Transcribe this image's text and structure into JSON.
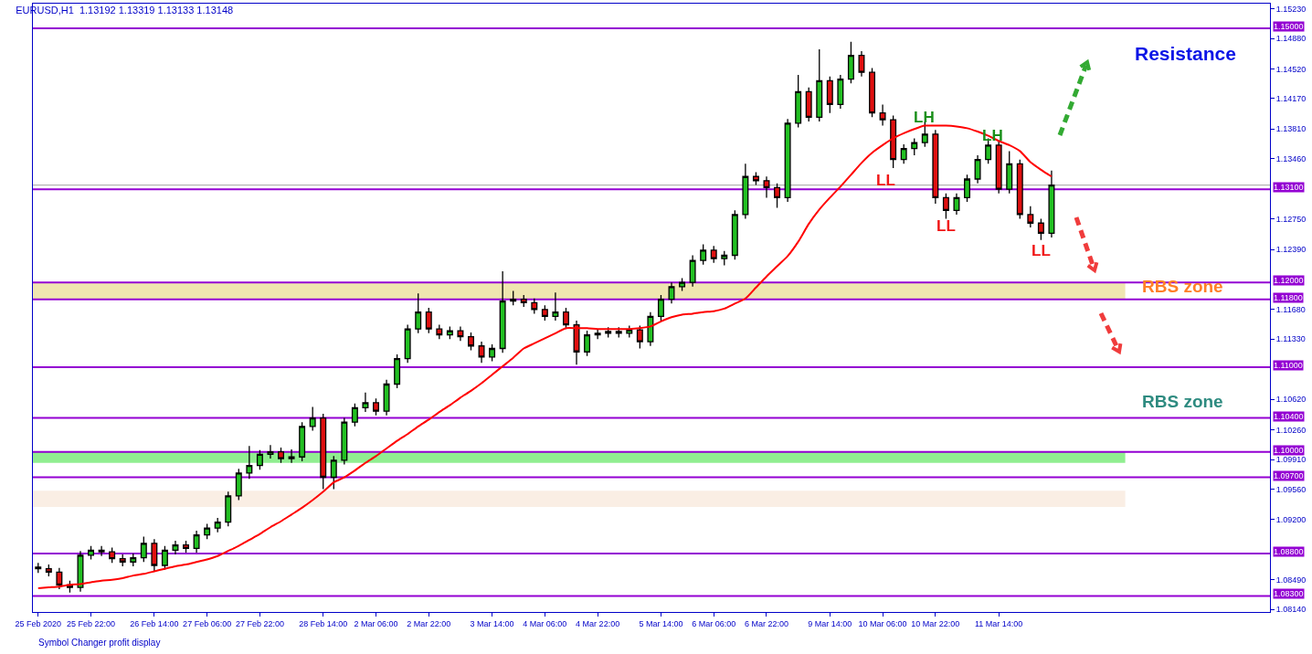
{
  "chart_data": {
    "type": "candlestick",
    "title": "EURUSD,H1  1.13192 1.13319 1.13133 1.13148",
    "categories": [
      "25 Feb 2020",
      null,
      null,
      null,
      null,
      "25 Feb 22:00",
      null,
      null,
      null,
      null,
      null,
      "26 Feb 14:00",
      null,
      null,
      null,
      null,
      "27 Feb 06:00",
      null,
      null,
      null,
      null,
      "27 Feb 22:00",
      null,
      null,
      null,
      null,
      null,
      "28 Feb 14:00",
      null,
      null,
      null,
      null,
      "2 Mar 06:00",
      null,
      null,
      null,
      null,
      "2 Mar 22:00",
      null,
      null,
      null,
      null,
      null,
      "3 Mar 14:00",
      null,
      null,
      null,
      null,
      "4 Mar 06:00",
      null,
      null,
      null,
      null,
      "4 Mar 22:00",
      null,
      null,
      null,
      null,
      null,
      "5 Mar 14:00",
      null,
      null,
      null,
      null,
      "6 Mar 06:00",
      null,
      null,
      null,
      null,
      "6 Mar 22:00",
      null,
      null,
      null,
      null,
      null,
      "9 Mar 14:00",
      null,
      null,
      null,
      null,
      "10 Mar 06:00",
      null,
      null,
      null,
      null,
      "10 Mar 22:00",
      null,
      null,
      null,
      null,
      null,
      "11 Mar 14:00",
      null,
      null,
      null,
      null,
      null
    ],
    "ohlc": [
      [
        1.0864,
        1.0869,
        1.0857,
        1.0862
      ],
      [
        1.0862,
        1.0867,
        1.0853,
        1.0858
      ],
      [
        1.0858,
        1.0863,
        1.0838,
        1.0843
      ],
      [
        1.0843,
        1.0848,
        1.0834,
        1.084
      ],
      [
        1.084,
        1.0883,
        1.0835,
        1.0878
      ],
      [
        1.0878,
        1.0889,
        1.0873,
        1.0884
      ],
      [
        1.0884,
        1.0889,
        1.0877,
        1.0882
      ],
      [
        1.0882,
        1.0887,
        1.0869,
        1.0874
      ],
      [
        1.0874,
        1.0879,
        1.0865,
        1.087
      ],
      [
        1.087,
        1.088,
        1.0865,
        1.0875
      ],
      [
        1.0875,
        1.09,
        1.087,
        1.0892
      ],
      [
        1.0892,
        1.0897,
        1.0859,
        1.0866
      ],
      [
        1.0866,
        1.0889,
        1.0861,
        1.0884
      ],
      [
        1.0884,
        1.0895,
        1.0879,
        1.089
      ],
      [
        1.089,
        1.0895,
        1.0881,
        1.0886
      ],
      [
        1.0886,
        1.0907,
        1.0881,
        1.0902
      ],
      [
        1.0902,
        1.0915,
        1.0897,
        1.091
      ],
      [
        1.091,
        1.0922,
        1.0905,
        1.0917
      ],
      [
        1.0917,
        1.0953,
        1.0912,
        1.0948
      ],
      [
        1.0948,
        1.098,
        1.0943,
        1.0975
      ],
      [
        1.0975,
        1.1007,
        1.0968,
        1.0984
      ],
      [
        1.0984,
        1.1002,
        1.0979,
        1.0997
      ],
      [
        1.0997,
        1.1008,
        1.0992,
        1.1
      ],
      [
        1.1,
        1.1005,
        1.0987,
        1.0992
      ],
      [
        1.0992,
        1.1003,
        1.0987,
        1.0994
      ],
      [
        1.0994,
        1.1035,
        1.0989,
        1.103
      ],
      [
        1.103,
        1.1053,
        1.1025,
        1.104
      ],
      [
        1.104,
        1.1045,
        1.0956,
        1.097
      ],
      [
        1.097,
        1.0995,
        1.0956,
        1.099
      ],
      [
        1.099,
        1.104,
        1.0985,
        1.1035
      ],
      [
        1.1035,
        1.1057,
        1.103,
        1.1052
      ],
      [
        1.1052,
        1.107,
        1.1047,
        1.1058
      ],
      [
        1.1058,
        1.1063,
        1.1043,
        1.1048
      ],
      [
        1.1048,
        1.1085,
        1.1043,
        1.108
      ],
      [
        1.108,
        1.1115,
        1.1075,
        1.111
      ],
      [
        1.111,
        1.115,
        1.1105,
        1.1145
      ],
      [
        1.1145,
        1.1187,
        1.114,
        1.1165
      ],
      [
        1.1165,
        1.117,
        1.114,
        1.1145
      ],
      [
        1.1145,
        1.115,
        1.1133,
        1.1138
      ],
      [
        1.1138,
        1.1148,
        1.1133,
        1.1143
      ],
      [
        1.1143,
        1.1148,
        1.1131,
        1.1136
      ],
      [
        1.1136,
        1.1141,
        1.112,
        1.1125
      ],
      [
        1.1125,
        1.113,
        1.1105,
        1.1112
      ],
      [
        1.1112,
        1.1127,
        1.1107,
        1.1122
      ],
      [
        1.1122,
        1.1213,
        1.1117,
        1.1178
      ],
      [
        1.1178,
        1.119,
        1.1173,
        1.118
      ],
      [
        1.118,
        1.1185,
        1.1171,
        1.1176
      ],
      [
        1.1176,
        1.1181,
        1.1163,
        1.1168
      ],
      [
        1.1168,
        1.1173,
        1.1155,
        1.116
      ],
      [
        1.116,
        1.1188,
        1.1155,
        1.1165
      ],
      [
        1.1165,
        1.117,
        1.1145,
        1.115
      ],
      [
        1.115,
        1.1155,
        1.1103,
        1.1118
      ],
      [
        1.1118,
        1.1143,
        1.1113,
        1.1138
      ],
      [
        1.1138,
        1.1145,
        1.1133,
        1.114
      ],
      [
        1.114,
        1.1147,
        1.1135,
        1.1142
      ],
      [
        1.1142,
        1.1147,
        1.1135,
        1.114
      ],
      [
        1.114,
        1.1149,
        1.1135,
        1.1144
      ],
      [
        1.1144,
        1.1149,
        1.1122,
        1.113
      ],
      [
        1.113,
        1.1165,
        1.1125,
        1.116
      ],
      [
        1.116,
        1.1185,
        1.1155,
        1.118
      ],
      [
        1.118,
        1.12,
        1.1175,
        1.1195
      ],
      [
        1.1195,
        1.1205,
        1.119,
        1.12
      ],
      [
        1.12,
        1.1232,
        1.1195,
        1.1226
      ],
      [
        1.1226,
        1.1245,
        1.1221,
        1.1238
      ],
      [
        1.1238,
        1.1243,
        1.1223,
        1.1228
      ],
      [
        1.1228,
        1.1237,
        1.122,
        1.1232
      ],
      [
        1.1232,
        1.1285,
        1.1227,
        1.128
      ],
      [
        1.128,
        1.134,
        1.1275,
        1.1325
      ],
      [
        1.1325,
        1.133,
        1.1315,
        1.132
      ],
      [
        1.132,
        1.1325,
        1.13,
        1.1312
      ],
      [
        1.1312,
        1.1317,
        1.1288,
        1.13
      ],
      [
        1.13,
        1.1393,
        1.1295,
        1.1388
      ],
      [
        1.1388,
        1.1445,
        1.1383,
        1.1425
      ],
      [
        1.1425,
        1.143,
        1.139,
        1.1395
      ],
      [
        1.1395,
        1.1475,
        1.139,
        1.1438
      ],
      [
        1.1438,
        1.1443,
        1.14,
        1.141
      ],
      [
        1.141,
        1.1445,
        1.1405,
        1.144
      ],
      [
        1.144,
        1.1484,
        1.1435,
        1.1468
      ],
      [
        1.1468,
        1.1473,
        1.1443,
        1.1448
      ],
      [
        1.1448,
        1.1453,
        1.1395,
        1.14
      ],
      [
        1.14,
        1.141,
        1.1385,
        1.1392
      ],
      [
        1.1392,
        1.1397,
        1.1335,
        1.1345
      ],
      [
        1.1345,
        1.1363,
        1.134,
        1.1358
      ],
      [
        1.1358,
        1.137,
        1.135,
        1.1365
      ],
      [
        1.1365,
        1.139,
        1.136,
        1.1375
      ],
      [
        1.1375,
        1.138,
        1.1293,
        1.13
      ],
      [
        1.13,
        1.1305,
        1.1275,
        1.1285
      ],
      [
        1.1285,
        1.1305,
        1.128,
        1.13
      ],
      [
        1.13,
        1.1327,
        1.1295,
        1.1322
      ],
      [
        1.1322,
        1.135,
        1.1317,
        1.1345
      ],
      [
        1.1345,
        1.137,
        1.134,
        1.1362
      ],
      [
        1.1362,
        1.1367,
        1.1305,
        1.131
      ],
      [
        1.131,
        1.1355,
        1.1305,
        1.134
      ],
      [
        1.134,
        1.1345,
        1.1275,
        1.128
      ],
      [
        1.128,
        1.129,
        1.1265,
        1.127
      ],
      [
        1.127,
        1.1275,
        1.125,
        1.1258
      ],
      [
        1.1258,
        1.13319,
        1.1253,
        1.13148
      ]
    ],
    "series": [
      {
        "type": "line",
        "color": "#ff0000",
        "values": [
          1.0839,
          1.084,
          1.0841,
          1.0843,
          1.0844,
          1.0846,
          1.0848,
          1.0849,
          1.0851,
          1.0854,
          1.0856,
          1.0859,
          1.0862,
          1.0865,
          1.0867,
          1.087,
          1.0873,
          1.0877,
          1.0883,
          1.0889,
          1.0896,
          1.0903,
          1.0911,
          1.0918,
          1.0926,
          1.0934,
          1.0943,
          1.0953,
          1.0964,
          1.097,
          1.0978,
          1.0987,
          1.0995,
          1.1004,
          1.1013,
          1.1021,
          1.103,
          1.1038,
          1.1047,
          1.1055,
          1.1064,
          1.1072,
          1.1081,
          1.1091,
          1.1101,
          1.1111,
          1.1122,
          1.1128,
          1.1134,
          1.114,
          1.1146,
          1.1146,
          1.1146,
          1.1145,
          1.1145,
          1.1145,
          1.1145,
          1.1146,
          1.1148,
          1.1154,
          1.1159,
          1.1162,
          1.1163,
          1.1165,
          1.1166,
          1.1169,
          1.1175,
          1.1181,
          1.1194,
          1.1207,
          1.1219,
          1.1231,
          1.1248,
          1.1269,
          1.1286,
          1.13,
          1.1313,
          1.1327,
          1.1341,
          1.1353,
          1.1362,
          1.137,
          1.1376,
          1.1381,
          1.1385,
          1.1385,
          1.1385,
          1.1384,
          1.1382,
          1.1378,
          1.1373,
          1.1367,
          1.1362,
          1.1355,
          1.1342,
          1.1333,
          1.1325
        ]
      }
    ],
    "ylim": [
      1.0811,
      1.1529
    ],
    "yticks": [
      {
        "value": 1.1523,
        "label": "1.15230"
      },
      {
        "value": 1.1488,
        "label": "1.14880"
      },
      {
        "value": 1.1452,
        "label": "1.14520"
      },
      {
        "value": 1.1417,
        "label": "1.14170"
      },
      {
        "value": 1.1381,
        "label": "1.13810"
      },
      {
        "value": 1.1346,
        "label": "1.13460"
      },
      {
        "value": 1.1275,
        "label": "1.12750"
      },
      {
        "value": 1.1239,
        "label": "1.12390"
      },
      {
        "value": 1.1168,
        "label": "1.11680"
      },
      {
        "value": 1.1133,
        "label": "1.11330"
      },
      {
        "value": 1.1062,
        "label": "1.10620"
      },
      {
        "value": 1.1026,
        "label": "1.10260"
      },
      {
        "value": 1.0991,
        "label": "1.09910"
      },
      {
        "value": 1.0956,
        "label": "1.09560"
      },
      {
        "value": 1.092,
        "label": "1.09200"
      },
      {
        "value": 1.0849,
        "label": "1.08490"
      },
      {
        "value": 1.0814,
        "label": "1.08140"
      }
    ],
    "ref_lines": [
      {
        "axis": "y",
        "value": 1.15,
        "label": "1.15000",
        "color": "#9400d3"
      },
      {
        "axis": "y",
        "value": 1.13148,
        "label": null,
        "color": "#a0a0a0"
      },
      {
        "axis": "y",
        "value": 1.131,
        "label": "1.13100",
        "color": "#9400d3"
      },
      {
        "axis": "y",
        "value": 1.12,
        "label": "1.12000",
        "color": "#9400d3"
      },
      {
        "axis": "y",
        "value": 1.118,
        "label": "1.11800",
        "color": "#9400d3"
      },
      {
        "axis": "y",
        "value": 1.11,
        "label": "1.11000",
        "color": "#9400d3"
      },
      {
        "axis": "y",
        "value": 1.104,
        "label": "1.10400",
        "color": "#9400d3"
      },
      {
        "axis": "y",
        "value": 1.1,
        "label": "1.10000",
        "color": "#9400d3"
      },
      {
        "axis": "y",
        "value": 1.097,
        "label": "1.09700",
        "color": "#9400d3"
      },
      {
        "axis": "y",
        "value": 1.088,
        "label": "1.08800",
        "color": "#9400d3"
      },
      {
        "axis": "y",
        "value": 1.083,
        "label": "1.08300",
        "color": "#9400d3"
      }
    ],
    "bands": [
      {
        "axis": "y",
        "from": 1.118,
        "to": 1.12,
        "color": "#efe6b0"
      },
      {
        "axis": "y",
        "from": 1.0987,
        "to": 1.1,
        "color": "#90ee90"
      },
      {
        "axis": "y",
        "from": 1.0935,
        "to": 1.0954,
        "color": "#faeee4"
      }
    ],
    "annotations": [
      "Resistance",
      "RBS zone",
      "RBS zone",
      "LH",
      "LH",
      "LL",
      "LL",
      "LL",
      "Symbol Changer profit display"
    ],
    "grid": false
  }
}
